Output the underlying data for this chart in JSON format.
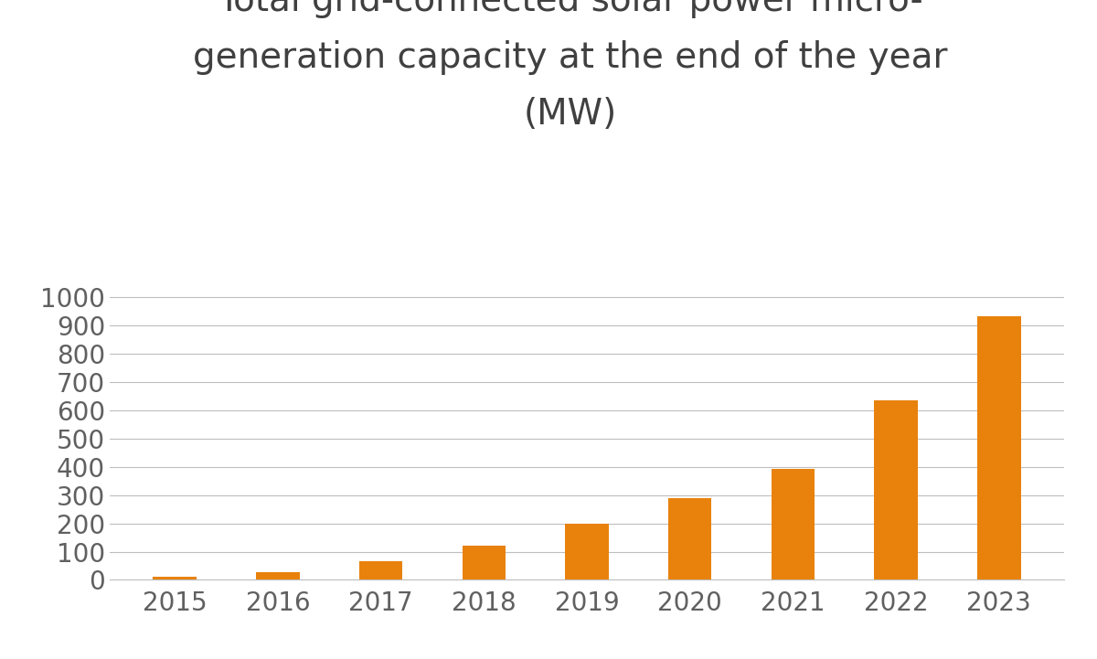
{
  "title_line1": "Total grid-connected solar power micro-",
  "title_line2": "generation capacity at the end of the year",
  "title_line3": "(MW)",
  "categories": [
    "2015",
    "2016",
    "2017",
    "2018",
    "2019",
    "2020",
    "2021",
    "2022",
    "2023"
  ],
  "values": [
    11,
    28,
    65,
    120,
    198,
    290,
    393,
    635,
    935
  ],
  "bar_color": "#E8820C",
  "background_color": "#FFFFFF",
  "ylim": [
    0,
    1050
  ],
  "yticks": [
    0,
    100,
    200,
    300,
    400,
    500,
    600,
    700,
    800,
    900,
    1000
  ],
  "title_fontsize": 28,
  "tick_fontsize": 20,
  "grid_color": "#BEBEBE",
  "bar_width": 0.42,
  "title_color": "#404040",
  "tick_color": "#606060"
}
